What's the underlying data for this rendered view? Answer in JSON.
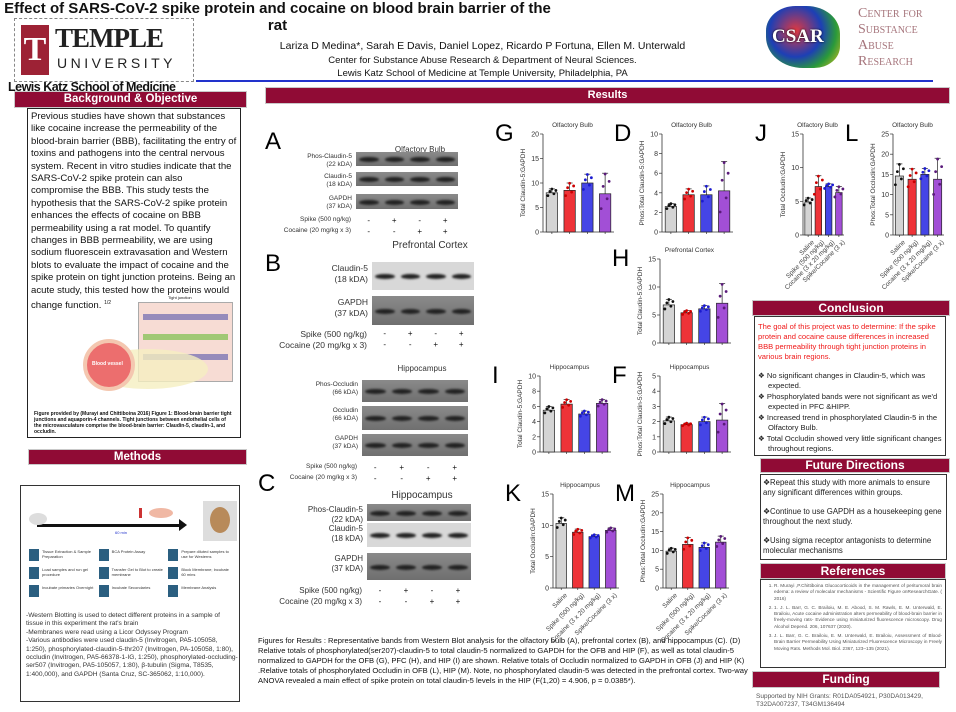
{
  "header": {
    "institution_logo": "TEMPLE UNIVERSITY",
    "school": "Lewis Katz School of Medicine",
    "title": "Effect of SARS-CoV-2 spike protein and cocaine on blood brain barrier of the rat",
    "authors": "Lariza D Medina*, Sarah E Davis, Daniel Lopez, Ricardo P Fortuna, Ellen M. Unterwald",
    "affiliation_1": "Center for Substance Abuse Research & Department of Neural Sciences.",
    "affiliation_2": "Lewis Katz School of Medicine at Temple University, Philadelphia, PA",
    "csar_logo": "CSAR",
    "center_logo": "Center for Substance Abuse Research"
  },
  "background": {
    "heading": "Background & Objective",
    "text": "Previous studies have shown that substances like cocaine increase the permeability of the blood-brain barrier (BBB), facilitating the entry of toxins and pathogens into the central nervous system. Recent in vitro studies indicate that the SARS-CoV-2 spike protein can also compromise the BBB. This study tests the hypothesis that the SARS-CoV-2 spike protein enhances the effects of cocaine on BBB permeability using a rat model. To quantify changes in BBB permeability, we are using sodium fluorescein extravasation and Western blots to evaluate the impact of cocaine and the spike protein on tight junction proteins. Being an acute study, this tested how the proteins would change function.",
    "superscript": "1/2",
    "figure_labels": {
      "tj": "Tight junction",
      "blood": "Blood vessel"
    },
    "figure_caption": "Figure provided by (Murayi and Chittiboina 2016) Figure 1: Blood-brain barrier tight junctions and aquaporin-4 channels. Tight junctions between endothelial cells of the microvasculature comprise the blood-brain barrier: Claudin-5, claudin-1, and occludin."
  },
  "methods": {
    "heading": "Methods",
    "steps": [
      "Tissue Extraction & Sample Preparation",
      "BCA Protein Assay",
      "Prepare diluted samples to use for Westerns",
      "Load samples and run gel procedure",
      "Transfer Gel to Blot to create membrane",
      "Block Membrane; Incubate 60 mins",
      "Incubate primaries Overnight",
      "Incubate Secondaries",
      "Membrane Analysis"
    ],
    "timeline_label": "60 min",
    "lines": [
      "-Western Blotting is used to detect different proteins in a sample of tissue in this experiment the rat's brain",
      "-Membranes were read using a Licor Odyssey Program",
      "-Various antibodies were used claudin-5 (Invitrogen, PA5-105058, 1:250), phosphorylated-claudin-5-thr207 (Invitrogen, PA-105058, 1:80), occludin (Invitrogen, PA5-66378-1-IG, 1:250), phosphorylated-occluding-ser507 (Invitrogen, PA5-105057, 1:80), β-tubulin (Sigma, T8535, 1:400,000), and GAPDH (Santa Cruz, SC-365062, 1:10,000)."
    ]
  },
  "results": {
    "heading": "Results",
    "treatment_rows": {
      "spike": "Spike (500 ng/kg)",
      "cocaine": "Cocaine (20 mg/kg x 3)",
      "spike_signs": [
        "-",
        "+",
        "-",
        "+"
      ],
      "cocaine_signs": [
        "-",
        "-",
        "+",
        "+"
      ]
    },
    "blots": [
      {
        "letter": "A",
        "title": "Olfactory Bulb",
        "rows": [
          {
            "label": "Phos-Claudin-5",
            "kda": "(22 kDA)"
          },
          {
            "label": "Claudin-5",
            "kda": "(18 kDA)"
          },
          {
            "label": "GAPDH",
            "kda": "(37 kDA)"
          }
        ]
      },
      {
        "letter": "B",
        "title": "Prefrontal  Cortex",
        "rows": [
          {
            "label": "Claudin-5",
            "kda": "(18 kDA)"
          },
          {
            "label": "GAPDH",
            "kda": "(37 kDA)"
          }
        ]
      },
      {
        "letter": "",
        "title": "Hippocampus",
        "rows": [
          {
            "label": "Phos-Occludin",
            "kda": "(66 kDA)"
          },
          {
            "label": "Occludin",
            "kda": "(66 kDA)"
          },
          {
            "label": "GAPDH",
            "kda": "(37 kDA)"
          }
        ]
      },
      {
        "letter": "C",
        "title": "Hippocampus",
        "rows": [
          {
            "label": "Phos-Claudin-5",
            "kda": "(22 kDA)"
          },
          {
            "label": "Claudin-5",
            "kda": "(18 kDA)"
          },
          {
            "label": "GAPDH",
            "kda": "(37 kDA)"
          }
        ]
      }
    ],
    "caption": "Figures for Results  : Representative bands from Western Blot analysis for the olfactory bulb (A), prefrontal cortex (B), and hippocampus (C). (D) Relative totals of phosphorylated(ser207)-claudin-5 to total claudin-5 normalized to GAPDH for the OFB  and HIP (F), as well as total claudin-5 normalized to GAPDH for the OFB (G), PFC (H), and HIP (I) are shown. Relative totals of Occludin normalized to GAPDH in OFB (J) and HIP (K) .Relative totals of phosphorylated Occludin in OFB (L), HIP (M). Note, no phosphorylated claudin-5 was detected in the prefrontal cortex. Two-way ANOVA revealed a main effect of spike protein on total claudin-5 levels in the HIP (F(1,20) = 4.906, p = 0.0385*)."
  },
  "chart_data": [
    {
      "type": "bar",
      "letter": "G",
      "title": "Olfactory Bulb",
      "ylabel": "Total Claudin-5:GAPDH",
      "ylim": [
        0,
        20
      ],
      "ticks": [
        0,
        5,
        10,
        15,
        20
      ],
      "categories": [
        "Saline",
        "Spike (500 ng/kg)",
        "Cocaine (3 x 20 mg/kg)",
        "Spike/Cocaine (3 x)"
      ],
      "show_categories": false,
      "values": [
        8,
        8.5,
        10,
        7.8
      ],
      "errors": [
        0.8,
        1.5,
        1.8,
        4.2
      ]
    },
    {
      "type": "bar",
      "letter": "D",
      "title": "Olfactory Bulb",
      "ylabel": "Phos:Total Claudin-5:GAPDH",
      "ylim": [
        0,
        10
      ],
      "ticks": [
        0,
        2,
        4,
        6,
        8,
        10
      ],
      "categories": [
        "Saline",
        "Spike (500 ng/kg)",
        "Cocaine (3 x 20 mg/kg)",
        "Spike/Cocaine (3 x)"
      ],
      "show_categories": false,
      "values": [
        2.6,
        3.8,
        3.8,
        4.2
      ],
      "errors": [
        0.3,
        0.6,
        0.9,
        3.0
      ]
    },
    {
      "type": "bar",
      "letter": "J",
      "title": "Olfactory Bulb",
      "ylabel": "Total Occludin:GAPDH",
      "ylim": [
        0,
        15
      ],
      "ticks": [
        0,
        5,
        10,
        15
      ],
      "categories": [
        "Saline",
        "Spike (500 ng/kg)",
        "Cocaine (3 x 20 mg/kg)",
        "Spike/Cocaine (3 x)"
      ],
      "show_categories": true,
      "values": [
        4.9,
        7.2,
        7.2,
        6.3
      ],
      "errors": [
        0.6,
        1.6,
        0.4,
        0.9
      ]
    },
    {
      "type": "bar",
      "letter": "L",
      "title": "Olfactory Bulb",
      "ylabel": "Phos:Total Occludin:GAPDH",
      "ylim": [
        0,
        25
      ],
      "ticks": [
        0,
        5,
        10,
        15,
        20,
        25
      ],
      "categories": [
        "Saline",
        "Spike (500 ng/kg)",
        "Cocaine (3 x 20 mg/kg)",
        "Spike/Cocaine (3 x)"
      ],
      "show_categories": true,
      "values": [
        14.6,
        13.8,
        15,
        13.8
      ],
      "errors": [
        3,
        2.6,
        1.5,
        5.2
      ]
    },
    {
      "type": "bar",
      "letter": "H",
      "title": "Prefrontal Cortex",
      "ylabel": "Total Claudin-5:GAPDH",
      "ylim": [
        0,
        15
      ],
      "ticks": [
        0,
        5,
        10,
        15
      ],
      "categories": [
        "Saline",
        "Spike (500 ng/kg)",
        "Cocaine (3 x 20 mg/kg)",
        "Spike/Cocaine (3 x)"
      ],
      "show_categories": false,
      "values": [
        6.8,
        5.4,
        6.1,
        7.1
      ],
      "errors": [
        1.0,
        0.4,
        0.6,
        3.5
      ]
    },
    {
      "type": "bar",
      "letter": "I",
      "title": "Hippocampus",
      "ylabel": "Total Claudin-5:GAPDH",
      "ylim": [
        0,
        10
      ],
      "ticks": [
        0,
        2,
        4,
        6,
        8,
        10
      ],
      "categories": [
        "Saline",
        "Spike (500 ng/kg)",
        "Cocaine (3 x 20 mg/kg)",
        "Spike/Cocaine (3 x)"
      ],
      "show_categories": false,
      "values": [
        5.5,
        6.3,
        5.0,
        6.4
      ],
      "errors": [
        0.5,
        0.6,
        0.4,
        0.5
      ]
    },
    {
      "type": "bar",
      "letter": "F",
      "title": "Hippocampus",
      "ylabel": "Phos:Total Claudin-5:GAPDH",
      "ylim": [
        0,
        5
      ],
      "ticks": [
        0,
        1,
        2,
        3,
        4,
        5
      ],
      "categories": [
        "Saline",
        "Spike (500 ng/kg)",
        "Cocaine (3 x 20 mg/kg)",
        "Spike/Cocaine (3 x)"
      ],
      "show_categories": false,
      "values": [
        2.05,
        1.8,
        2.0,
        2.1
      ],
      "errors": [
        0.25,
        0.1,
        0.3,
        1.1
      ]
    },
    {
      "type": "bar",
      "letter": "K",
      "title": "Hippocampus",
      "ylabel": "Total Occludin:GAPDH",
      "ylim": [
        0,
        15
      ],
      "ticks": [
        0,
        5,
        10,
        15
      ],
      "categories": [
        "Saline",
        "Spike (500 ng/kg)",
        "Cocaine (3 x 20 mg/kg)",
        "Spike/Cocaine (3 x)"
      ],
      "show_categories": true,
      "values": [
        10.3,
        8.9,
        8.2,
        9.2
      ],
      "errors": [
        0.9,
        0.5,
        0.3,
        0.4
      ]
    },
    {
      "type": "bar",
      "letter": "M",
      "title": "Hippocampus",
      "ylabel": "Phos:Total Occludin:GAPDH",
      "ylim": [
        0,
        25
      ],
      "ticks": [
        0,
        5,
        10,
        15,
        20,
        25
      ],
      "categories": [
        "Saline",
        "Spike (500 ng/kg)",
        "Cocaine (3 x 20 mg/kg)",
        "Spike/Cocaine (3 x)"
      ],
      "show_categories": true,
      "values": [
        9.8,
        11.6,
        10.8,
        12.2
      ],
      "errors": [
        0.8,
        1.8,
        1.2,
        1.6
      ]
    }
  ],
  "bar_colors": [
    "#d4d4d4",
    "#ee3338",
    "#4545e6",
    "#a24fd6"
  ],
  "conclusion": {
    "heading": "Conclusion",
    "goal": "The goal of this project was to determine: If the spike protein and cocaine cause differences in increased BBB  permeability through tight junction proteins in various brain regions.",
    "bullets": [
      "No significant changes in Claudin-5, which was expected.",
      "Phosphorylated bands were not significant as we'd expected in PFC &HIPP.",
      "Increased trend in phosphorylated Claudin-5 in the Olfactory Bulb.",
      "Total Occludin showed very little significant changes throughout regions."
    ]
  },
  "future": {
    "heading": "Future Directions",
    "items": [
      "Repeat this study with more animals to ensure any significant differences within groups.",
      "Continue to use GAPDH as a housekeeping gene throughout the next study.",
      "Using sigma receptor antagonists to determine molecular mechanisms"
    ]
  },
  "references": {
    "heading": "References",
    "items": [
      "R. Murayi ,P.Chittiboina Glucocorticoids in the management of peritumoral brain edema: a review of molecular mechanisms - Scientific Figure onResearchGate. ( 2016)",
      "1. J. L. Barr, G. C. Brailoiu, M. E. Abood, S. M. Rawls, E. M. Unterwald, E. Brailoiu, Acute cocaine administration alters permeability of blood-brain barrier in freely-moving rats- Evidence using miniaturized fluorescence microscopy. Drug Alcohol Depend. 206, 107637 (2020).",
      "J. L. Barr, G. C. Brailoiu, E. M. Unterwald, E. Brailoiu, Assessment of Blood-Brain Barrier Permeability Using Miniaturized Fluorescence Microscopy in Freely Moving Rats. Methods Mol. Biol. 2367, 123–135 (2021)."
    ]
  },
  "funding": {
    "heading": "Funding",
    "text": "Supported by NIH Grants: R01DA054921, P30DA013429, T32DA007237, T34GM136494"
  }
}
